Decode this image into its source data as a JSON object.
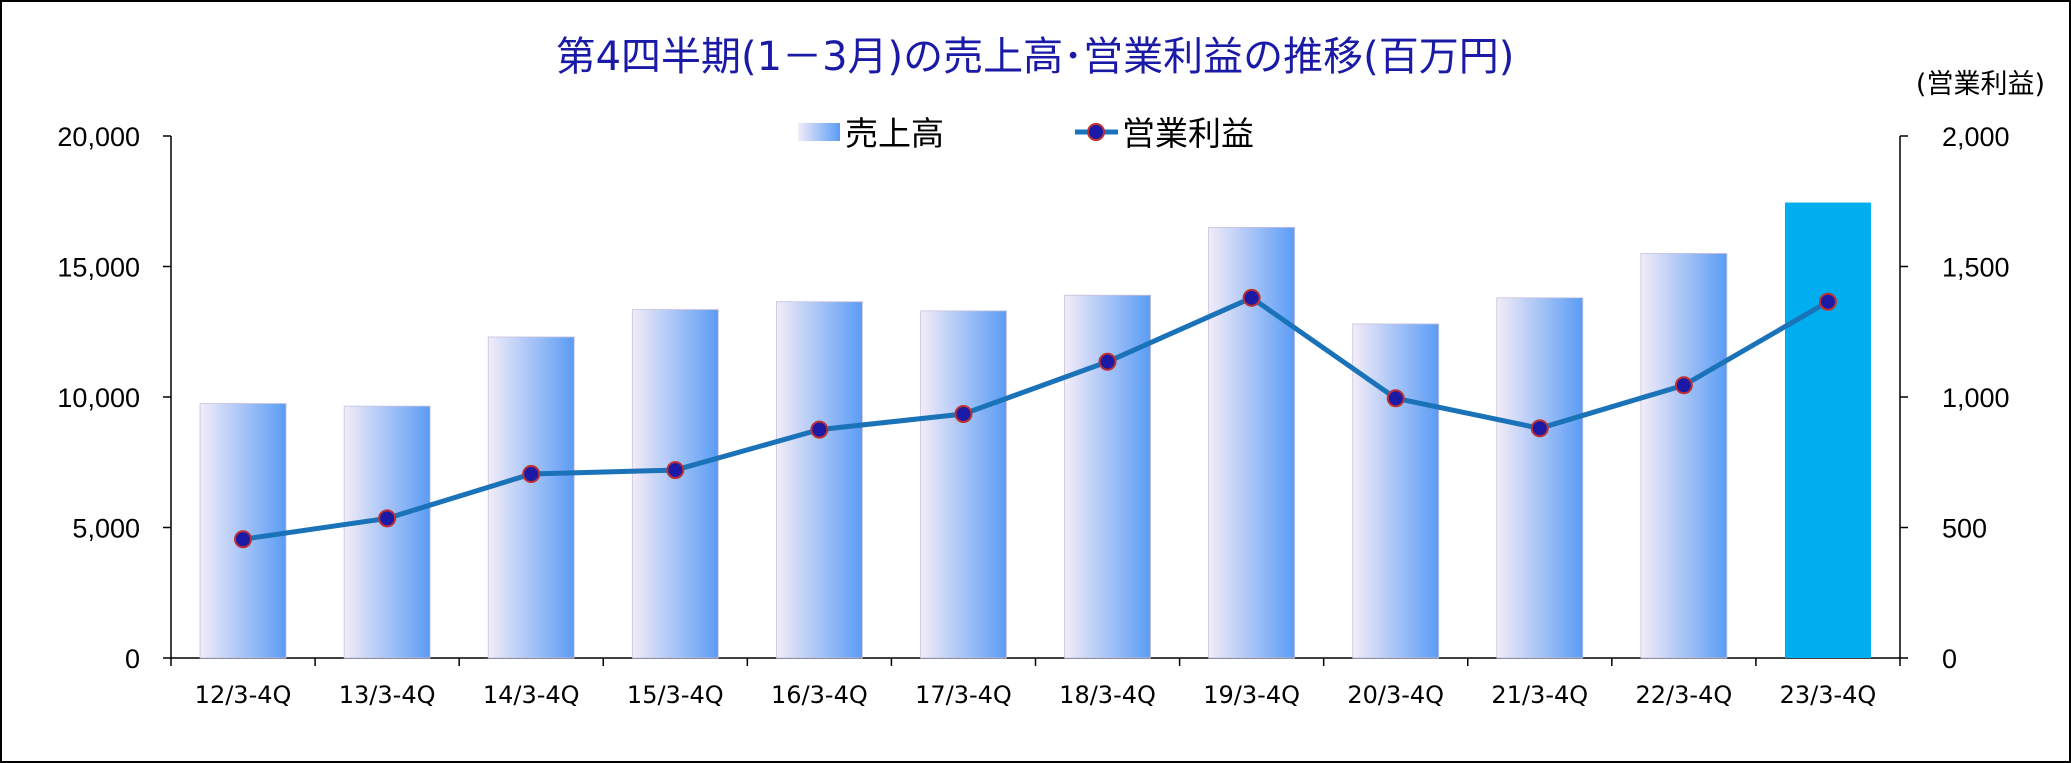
{
  "chart_data": {
    "type": "bar",
    "title": "第4四半期(1－3月)の売上高･営業利益の推移(百万円)",
    "y2label": "(営業利益)",
    "categories": [
      "12/3-4Q",
      "13/3-4Q",
      "14/3-4Q",
      "15/3-4Q",
      "16/3-4Q",
      "17/3-4Q",
      "18/3-4Q",
      "19/3-4Q",
      "20/3-4Q",
      "21/3-4Q",
      "22/3-4Q",
      "23/3-4Q"
    ],
    "series": [
      {
        "name": "売上高",
        "type": "bar",
        "axis": "left",
        "values": [
          9750,
          9650,
          12300,
          13350,
          13650,
          13300,
          13900,
          16500,
          12800,
          13800,
          15500,
          17450
        ]
      },
      {
        "name": "営業利益",
        "type": "line",
        "axis": "right",
        "values": [
          455,
          535,
          705,
          720,
          875,
          935,
          1135,
          1380,
          995,
          880,
          1045,
          1365
        ]
      }
    ],
    "ylim": [
      0,
      20000
    ],
    "y2lim": [
      0,
      2000
    ],
    "yticks": [
      "0",
      "5,000",
      "10,000",
      "15,000",
      "20,000"
    ],
    "y2ticks": [
      "0",
      "500",
      "1,000",
      "1,500",
      "2,000"
    ],
    "legend_position": "top",
    "grid": false,
    "colors": {
      "title": "#1a1aa6",
      "bar_light": "#f3ecf8",
      "bar_dark": "#5a9cf5",
      "bar_highlight": "#00aeef",
      "line": "#1a72b8",
      "marker_fill": "#1a1aa6",
      "marker_edge": "#c03030"
    }
  }
}
